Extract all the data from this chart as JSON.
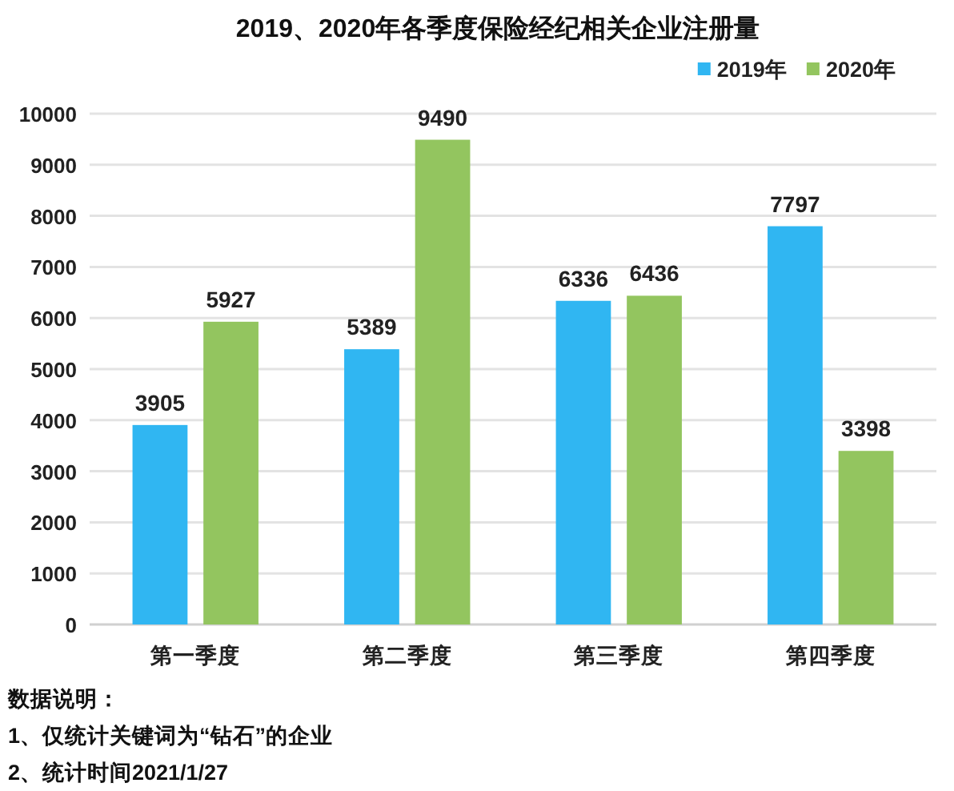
{
  "chart_data": {
    "type": "bar",
    "title": "2019、2020年各季度保险经纪相关企业注册量",
    "categories": [
      "第一季度",
      "第二季度",
      "第三季度",
      "第四季度"
    ],
    "series": [
      {
        "name": "2019年",
        "color": "#30b6f2",
        "values": [
          3905,
          5389,
          6336,
          7797
        ]
      },
      {
        "name": "2020年",
        "color": "#93c55f",
        "values": [
          5927,
          9490,
          6436,
          3398
        ]
      }
    ],
    "ylim": [
      0,
      10000
    ],
    "yticks": [
      0,
      1000,
      2000,
      3000,
      4000,
      5000,
      6000,
      7000,
      8000,
      9000,
      10000
    ],
    "grid": "y",
    "legend": "top right",
    "data_labels": true,
    "annotations": [
      "数据说明：",
      "1、仅统计关键词为“钻石”的企业",
      "2、统计时间2021/1/27"
    ]
  }
}
